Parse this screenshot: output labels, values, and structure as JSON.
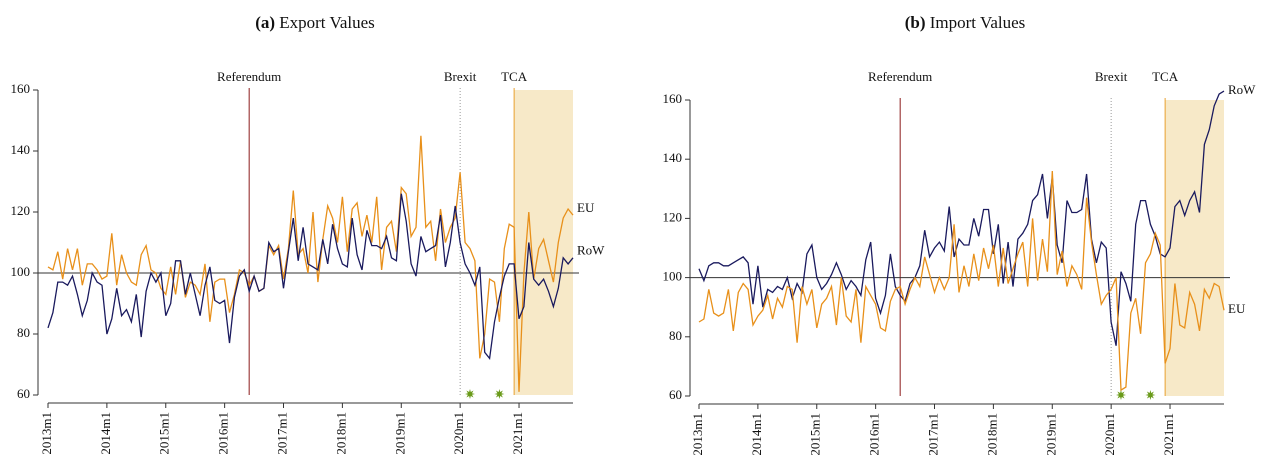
{
  "chart_data": [
    {
      "type": "line",
      "label": "(a)",
      "title": "Export Values",
      "categories": [
        "2013m1",
        null,
        null,
        null,
        null,
        null,
        null,
        null,
        null,
        null,
        null,
        null,
        "2014m1",
        null,
        null,
        null,
        null,
        null,
        null,
        null,
        null,
        null,
        null,
        null,
        "2015m1",
        null,
        null,
        null,
        null,
        null,
        null,
        null,
        null,
        null,
        null,
        null,
        "2016m1",
        null,
        null,
        null,
        null,
        null,
        null,
        null,
        null,
        null,
        null,
        null,
        "2017m1",
        null,
        null,
        null,
        null,
        null,
        null,
        null,
        null,
        null,
        null,
        null,
        "2018m1",
        null,
        null,
        null,
        null,
        null,
        null,
        null,
        null,
        null,
        null,
        null,
        "2019m1",
        null,
        null,
        null,
        null,
        null,
        null,
        null,
        null,
        null,
        null,
        null,
        "2020m1",
        null,
        null,
        null,
        null,
        null,
        null,
        null,
        null,
        null,
        null,
        null,
        "2021m1",
        null,
        null,
        null,
        null,
        null,
        null,
        null,
        null,
        null,
        null,
        null
      ],
      "series": [
        {
          "name": "EU",
          "color": "#e8901a",
          "values": [
            102,
            101,
            107,
            98,
            108,
            101,
            108,
            96,
            103,
            103,
            101,
            98,
            99,
            113,
            96,
            106,
            100,
            97,
            96,
            106,
            109,
            101,
            100,
            95,
            93,
            102,
            93,
            104,
            92,
            97,
            96,
            93,
            103,
            84,
            97,
            98,
            98,
            87,
            93,
            101,
            100,
            96,
            99,
            94,
            95,
            109,
            106,
            109,
            98,
            108,
            127,
            106,
            108,
            100,
            120,
            97,
            111,
            122,
            118,
            110,
            125,
            107,
            121,
            123,
            112,
            119,
            110,
            125,
            101,
            115,
            117,
            107,
            128,
            126,
            112,
            115,
            145,
            115,
            117,
            104,
            121,
            110,
            115,
            118,
            133,
            110,
            108,
            104,
            72,
            80,
            98,
            97,
            84,
            108,
            116,
            115,
            61,
            100,
            120,
            98,
            108,
            111,
            104,
            97,
            110,
            118,
            121,
            119
          ]
        },
        {
          "name": "RoW",
          "color": "#1a1a5e",
          "values": [
            82,
            87,
            97,
            97,
            96,
            99,
            93,
            86,
            91,
            100,
            97,
            96,
            80,
            85,
            95,
            86,
            88,
            84,
            93,
            79,
            94,
            100,
            97,
            100,
            86,
            90,
            104,
            104,
            93,
            100,
            93,
            86,
            96,
            102,
            91,
            90,
            91,
            77,
            92,
            99,
            101,
            94,
            99,
            94,
            95,
            110,
            107,
            108,
            95,
            107,
            118,
            104,
            115,
            103,
            102,
            101,
            111,
            103,
            116,
            108,
            103,
            102,
            118,
            106,
            101,
            114,
            109,
            109,
            108,
            112,
            105,
            104,
            126,
            117,
            103,
            99,
            112,
            107,
            108,
            109,
            119,
            102,
            110,
            122,
            110,
            103,
            100,
            96,
            102,
            74,
            72,
            84,
            92,
            99,
            103,
            103,
            85,
            89,
            110,
            98,
            96,
            98,
            94,
            89,
            95,
            105,
            103,
            105
          ]
        }
      ],
      "ylim": [
        60,
        160
      ],
      "yticks": [
        60,
        80,
        100,
        120,
        140,
        160
      ],
      "reference_line": 100,
      "annotations": [
        {
          "text": "Referendum",
          "at": 41,
          "style": "solid",
          "color": "#8b1a1a"
        },
        {
          "text": "Brexit",
          "at": 84,
          "style": "dotted",
          "color": "#999999"
        },
        {
          "text": "TCA",
          "at": 95,
          "style": "solid",
          "color": "#e8a030",
          "shade": "#f7e9c8"
        }
      ],
      "markers": [
        86,
        92
      ],
      "marker_color": "#6a9a1a"
    },
    {
      "type": "line",
      "label": "(b)",
      "title": "Import Values",
      "categories": [
        "2013m1",
        null,
        null,
        null,
        null,
        null,
        null,
        null,
        null,
        null,
        null,
        null,
        "2014m1",
        null,
        null,
        null,
        null,
        null,
        null,
        null,
        null,
        null,
        null,
        null,
        "2015m1",
        null,
        null,
        null,
        null,
        null,
        null,
        null,
        null,
        null,
        null,
        null,
        "2016m1",
        null,
        null,
        null,
        null,
        null,
        null,
        null,
        null,
        null,
        null,
        null,
        "2017m1",
        null,
        null,
        null,
        null,
        null,
        null,
        null,
        null,
        null,
        null,
        null,
        "2018m1",
        null,
        null,
        null,
        null,
        null,
        null,
        null,
        null,
        null,
        null,
        null,
        "2019m1",
        null,
        null,
        null,
        null,
        null,
        null,
        null,
        null,
        null,
        null,
        null,
        "2020m1",
        null,
        null,
        null,
        null,
        null,
        null,
        null,
        null,
        null,
        null,
        null,
        "2021m1",
        null,
        null,
        null,
        null,
        null,
        null,
        null,
        null,
        null,
        null,
        null
      ],
      "series": [
        {
          "name": "RoW",
          "color": "#1a1a5e",
          "values": [
            103,
            99,
            104,
            105,
            105,
            104,
            104,
            105,
            106,
            107,
            105,
            91,
            104,
            90,
            96,
            95,
            97,
            96,
            100,
            93,
            98,
            95,
            108,
            111,
            100,
            96,
            98,
            101,
            105,
            101,
            96,
            99,
            97,
            94,
            106,
            112,
            93,
            88,
            94,
            108,
            97,
            94,
            92,
            98,
            100,
            104,
            116,
            107,
            110,
            112,
            109,
            124,
            107,
            113,
            111,
            111,
            120,
            114,
            123,
            123,
            108,
            118,
            98,
            112,
            97,
            113,
            115,
            118,
            126,
            128,
            135,
            120,
            134,
            111,
            105,
            126,
            122,
            122,
            123,
            135,
            113,
            105,
            112,
            110,
            85,
            77,
            102,
            98,
            92,
            118,
            126,
            126,
            118,
            114,
            108,
            107,
            110,
            124,
            126,
            121,
            126,
            129,
            122,
            145,
            150,
            158,
            162,
            163
          ]
        },
        {
          "name": "EU",
          "color": "#e8901a",
          "values": [
            85,
            86,
            96,
            88,
            87,
            88,
            96,
            82,
            95,
            98,
            96,
            84,
            87,
            89,
            94,
            86,
            93,
            90,
            97,
            96,
            78,
            97,
            91,
            96,
            83,
            91,
            93,
            97,
            84,
            100,
            87,
            85,
            96,
            78,
            97,
            94,
            91,
            83,
            82,
            92,
            96,
            97,
            91,
            96,
            100,
            97,
            107,
            101,
            95,
            100,
            96,
            100,
            118,
            95,
            104,
            97,
            108,
            99,
            110,
            103,
            111,
            97,
            110,
            98,
            103,
            108,
            112,
            97,
            120,
            99,
            113,
            102,
            136,
            101,
            109,
            97,
            104,
            101,
            96,
            127,
            112,
            101,
            91,
            94,
            96,
            100,
            62,
            63,
            88,
            93,
            81,
            105,
            108,
            115,
            111,
            71,
            76,
            98,
            84,
            83,
            95,
            91,
            82,
            96,
            93,
            98,
            97,
            89
          ]
        }
      ],
      "ylim": [
        60,
        160
      ],
      "yticks": [
        60,
        80,
        100,
        120,
        140,
        160
      ],
      "reference_line": 100,
      "annotations": [
        {
          "text": "Referendum",
          "at": 41,
          "style": "solid",
          "color": "#8b1a1a"
        },
        {
          "text": "Brexit",
          "at": 84,
          "style": "dotted",
          "color": "#999999"
        },
        {
          "text": "TCA",
          "at": 95,
          "style": "solid",
          "color": "#e8a030",
          "shade": "#f7e9c8"
        }
      ],
      "markers": [
        86,
        92
      ],
      "marker_color": "#6a9a1a"
    }
  ]
}
